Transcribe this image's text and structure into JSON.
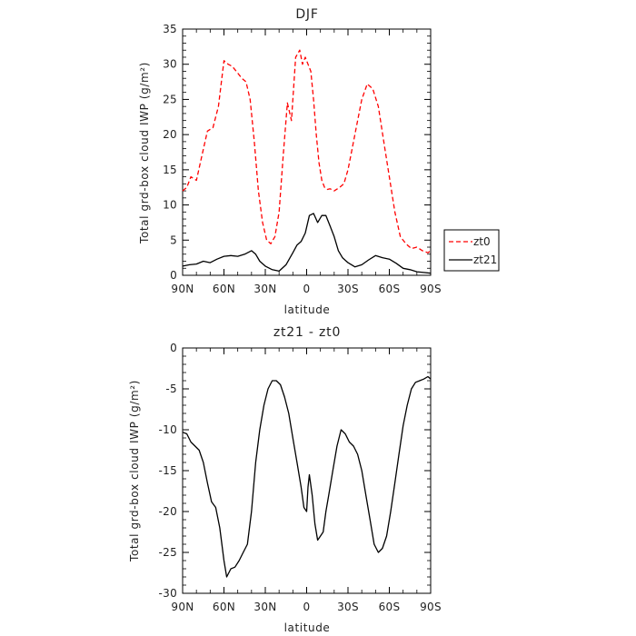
{
  "chart_data": [
    {
      "type": "line",
      "title": "DJF",
      "xlabel": "latitude",
      "ylabel": "Total grd-box cloud IWP (g/m²)",
      "xlim": [
        90,
        -90
      ],
      "ylim": [
        0,
        35
      ],
      "xticks": [
        90,
        60,
        30,
        0,
        -30,
        -60,
        -90
      ],
      "xticklabels": [
        "90N",
        "60N",
        "30N",
        "0",
        "30S",
        "60S",
        "90S"
      ],
      "yticks": [
        0,
        5,
        10,
        15,
        20,
        25,
        30,
        35
      ],
      "grid": false,
      "legend": {
        "placement": "right",
        "entries": [
          "zt0",
          "zt21"
        ]
      },
      "series": [
        {
          "name": "zt0",
          "color": "#ff0000",
          "style": "dashed",
          "x": [
            90,
            87,
            84,
            80,
            76,
            72,
            68,
            64,
            60,
            57,
            54,
            51,
            47,
            44,
            41,
            38,
            35,
            32,
            29,
            26,
            23,
            20,
            17,
            14,
            11,
            8,
            5,
            3,
            1,
            -1,
            -3,
            -5,
            -7,
            -9,
            -11,
            -13,
            -15,
            -17,
            -20,
            -24,
            -27,
            -30,
            -33,
            -36,
            -40,
            -44,
            -48,
            -52,
            -56,
            -60,
            -64,
            -68,
            -72,
            -76,
            -80,
            -84,
            -88,
            -90
          ],
          "y": [
            12,
            12.5,
            14,
            13.5,
            17,
            20.5,
            21,
            24,
            30.5,
            30,
            29.7,
            29,
            28,
            27.5,
            25,
            19,
            12,
            7.5,
            5,
            4.5,
            5.5,
            9,
            17,
            24.5,
            22,
            31,
            32,
            30,
            31,
            30,
            29,
            25,
            20,
            16,
            13.5,
            12.5,
            12.2,
            12.3,
            12,
            12.5,
            13,
            15,
            18,
            21,
            25,
            27.2,
            26.5,
            24,
            19,
            14,
            9,
            5.5,
            4.5,
            3.8,
            4,
            3.5,
            3.2,
            3.5
          ]
        },
        {
          "name": "zt21",
          "color": "#000000",
          "style": "solid",
          "x": [
            90,
            85,
            80,
            75,
            70,
            65,
            60,
            55,
            50,
            45,
            40,
            37,
            34,
            30,
            25,
            20,
            15,
            10,
            7,
            4,
            1,
            -2,
            -5,
            -8,
            -11,
            -14,
            -17,
            -20,
            -23,
            -26,
            -30,
            -35,
            -40,
            -45,
            -50,
            -55,
            -60,
            -65,
            -70,
            -75,
            -80,
            -85,
            -90
          ],
          "y": [
            1.3,
            1.5,
            1.6,
            2,
            1.8,
            2.3,
            2.7,
            2.8,
            2.7,
            3,
            3.5,
            3,
            2,
            1.3,
            0.8,
            0.6,
            1.5,
            3.2,
            4.3,
            4.8,
            6,
            8.5,
            8.8,
            7.5,
            8.5,
            8.5,
            7,
            5.5,
            3.5,
            2.5,
            1.8,
            1.2,
            1.5,
            2.2,
            2.8,
            2.5,
            2.3,
            1.7,
            1,
            0.8,
            0.5,
            0.4,
            0.3
          ]
        }
      ]
    },
    {
      "type": "line",
      "title": "zt21 - zt0",
      "xlabel": "latitude",
      "ylabel": "Total grd-box cloud IWP (g/m²)",
      "xlim": [
        90,
        -90
      ],
      "ylim": [
        -30,
        0
      ],
      "xticks": [
        90,
        60,
        30,
        0,
        -30,
        -60,
        -90
      ],
      "xticklabels": [
        "90N",
        "60N",
        "30N",
        "0",
        "30S",
        "60S",
        "90S"
      ],
      "yticks": [
        -30,
        -25,
        -20,
        -15,
        -10,
        -5,
        0
      ],
      "grid": false,
      "series": [
        {
          "color": "#000000",
          "style": "solid",
          "x": [
            90,
            87,
            84,
            81,
            78,
            75,
            72,
            69,
            66,
            63,
            60,
            58,
            55,
            52,
            49,
            46,
            43,
            40,
            37,
            34,
            31,
            28,
            25,
            22,
            19,
            16,
            13,
            10,
            7,
            4,
            2,
            0,
            -1,
            -2,
            -4,
            -6,
            -8,
            -10,
            -12,
            -14,
            -16,
            -19,
            -22,
            -25,
            -28,
            -31,
            -34,
            -37,
            -40,
            -43,
            -46,
            -49,
            -52,
            -55,
            -58,
            -61,
            -64,
            -67,
            -70,
            -73,
            -76,
            -79,
            -82,
            -85,
            -88,
            -90
          ],
          "y": [
            -10.3,
            -10.5,
            -11.5,
            -12,
            -12.5,
            -14,
            -16.5,
            -18.8,
            -19.5,
            -22,
            -26,
            -28,
            -27,
            -26.8,
            -26,
            -25,
            -24,
            -20,
            -14,
            -10,
            -7,
            -5,
            -4,
            -4,
            -4.5,
            -6,
            -8,
            -11,
            -14,
            -17,
            -19.5,
            -20,
            -17,
            -15.5,
            -18,
            -21.5,
            -23.5,
            -23,
            -22.5,
            -20,
            -18,
            -15,
            -12,
            -10,
            -10.5,
            -11.5,
            -12,
            -13,
            -15,
            -18,
            -21,
            -24,
            -25,
            -24.5,
            -23,
            -20,
            -16.5,
            -13,
            -9.5,
            -7,
            -5,
            -4.2,
            -4,
            -3.8,
            -3.5,
            -3.8
          ]
        }
      ]
    }
  ]
}
